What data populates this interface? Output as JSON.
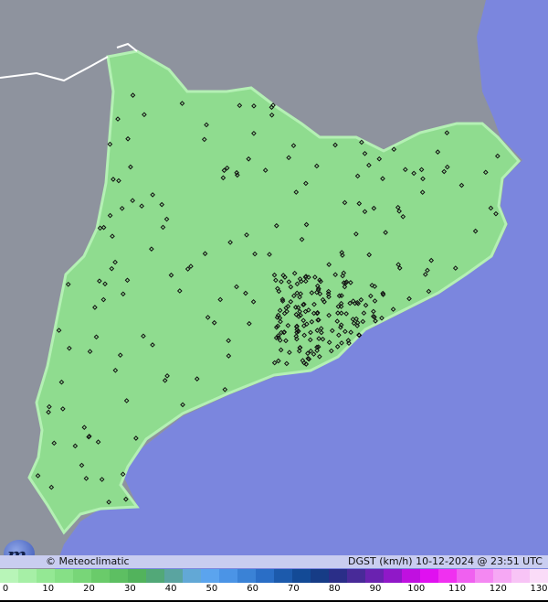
{
  "credit": "© Meteoclimatic",
  "title": "DGST (km/h)  10-12-2024 @ 23:51 UTC",
  "logo_text": "m",
  "legend": {
    "ticks": [
      "0",
      "10",
      "20",
      "30",
      "40",
      "50",
      "60",
      "70",
      "80",
      "90",
      "100",
      "110",
      "120",
      "130"
    ],
    "colors": [
      "#b8f5b8",
      "#a6efa6",
      "#94e894",
      "#86e086",
      "#78d678",
      "#6acb6a",
      "#5dbf62",
      "#52b35c",
      "#52a878",
      "#5aa4a0",
      "#62a8d6",
      "#5ba4ee",
      "#4b94e6",
      "#3a82d6",
      "#2a6ec6",
      "#1c5aac",
      "#134a96",
      "#163c86",
      "#2a2e88",
      "#482a98",
      "#6a22b0",
      "#9018c8",
      "#c010e0",
      "#e010f0",
      "#f030f0",
      "#f060f0",
      "#f488f2",
      "#f6a8f4",
      "#f8c4f6",
      "#fadcf8"
    ]
  },
  "colors": {
    "sea": "#7b86de",
    "land": "#8e939e",
    "region": "#8fdc8f",
    "station": "#111111"
  }
}
